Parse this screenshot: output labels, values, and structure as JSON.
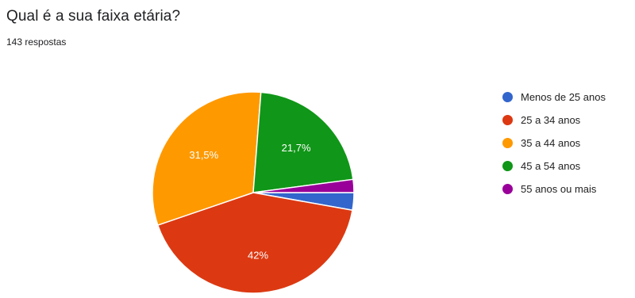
{
  "question": {
    "title": "Qual é a sua faixa etária?",
    "responses": "143 respostas"
  },
  "chart_data": {
    "type": "pie",
    "title": "Qual é a sua faixa etária?",
    "total_responses": 143,
    "legend_position": "right",
    "slices": [
      {
        "label": "Menos de 25 anos",
        "value": 2.8,
        "color": "#3366cc",
        "data_label": ""
      },
      {
        "label": "25 a 34 anos",
        "value": 42.0,
        "color": "#dc3912",
        "data_label": "42%"
      },
      {
        "label": "35 a 44 anos",
        "value": 31.5,
        "color": "#ff9900",
        "data_label": "31,5%"
      },
      {
        "label": "45 a 54 anos",
        "value": 21.7,
        "color": "#109618",
        "data_label": "21,7%"
      },
      {
        "label": "55 anos ou mais",
        "value": 2.1,
        "color": "#990099",
        "data_label": ""
      }
    ]
  }
}
